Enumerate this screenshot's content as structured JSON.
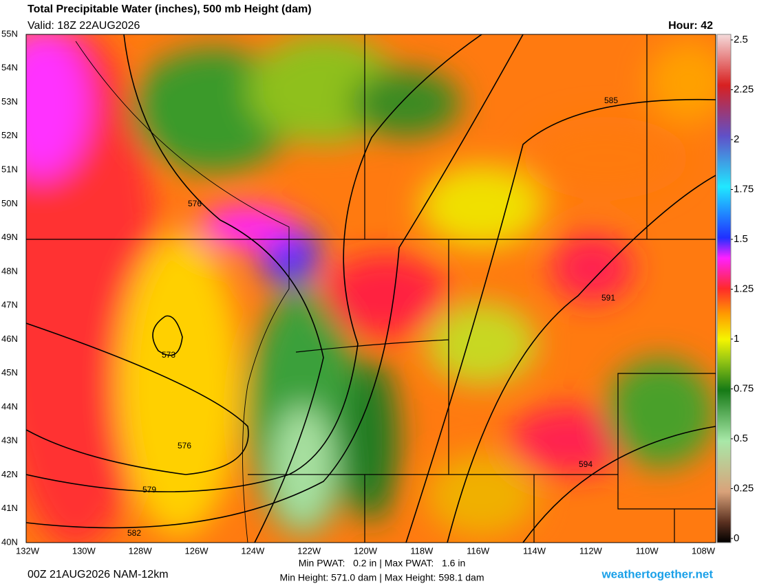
{
  "header": {
    "title": "Total Precipitable Water (inches), 500 mb Height (dam)",
    "valid": "Valid: 18Z 22AUG2026",
    "hour": "Hour: 42"
  },
  "map": {
    "lat_labels": [
      "55N",
      "54N",
      "53N",
      "52N",
      "51N",
      "50N",
      "49N",
      "48N",
      "47N",
      "46N",
      "45N",
      "44N",
      "43N",
      "42N",
      "41N",
      "40N"
    ],
    "lon_labels": [
      "132W",
      "130W",
      "128W",
      "126W",
      "124W",
      "122W",
      "120W",
      "118W",
      "116W",
      "114W",
      "112W",
      "110W",
      "108W"
    ],
    "contour_labels": [
      576,
      573,
      576,
      579,
      582,
      585,
      591,
      594
    ]
  },
  "colorbar": {
    "lim": [
      0,
      2.5
    ],
    "ticks": [
      0,
      0.25,
      0.5,
      0.75,
      1,
      1.25,
      1.5,
      1.75,
      2,
      2.25,
      2.5
    ]
  },
  "footer": {
    "run": "00Z 21AUG2026 NAM-12km",
    "pwat": "Min PWAT:   0.2 in | Max PWAT:   1.6 in",
    "height": "Min Height: 571.0 dam | Max Height: 598.1 dam",
    "site": "weathertogether.net"
  }
}
